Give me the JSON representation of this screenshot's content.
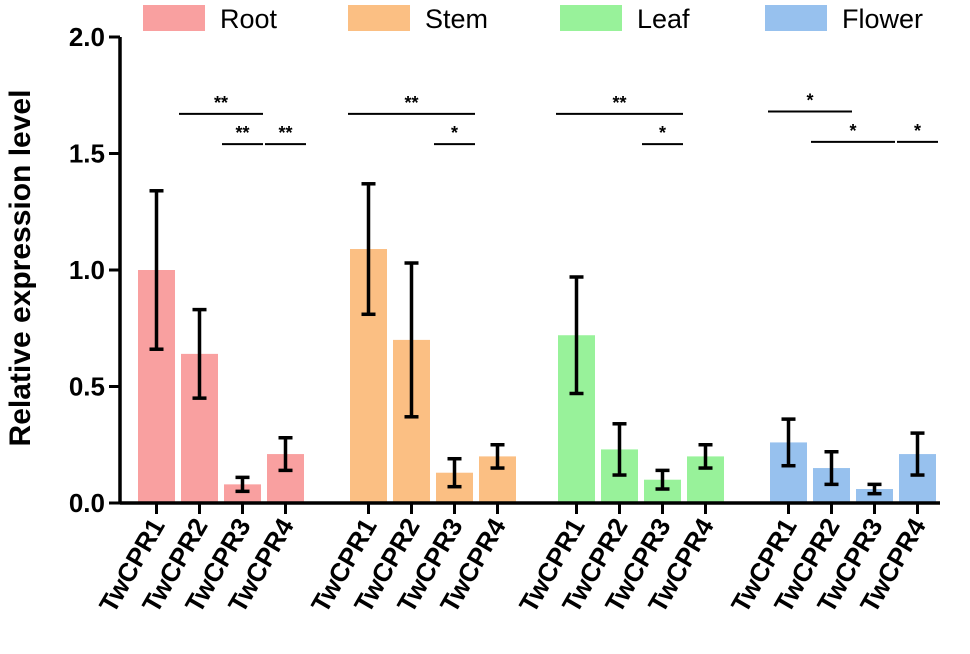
{
  "chart_data": {
    "type": "bar",
    "title": "",
    "xlabel": "",
    "ylabel": "Relative expression level",
    "ylim": [
      0,
      2.0
    ],
    "yticks": [
      "0.0",
      "0.5",
      "1.0",
      "1.5",
      "2.0"
    ],
    "legend_position": "top",
    "groups": [
      {
        "name": "Root",
        "color": "#f9a0a0"
      },
      {
        "name": "Stem",
        "color": "#fbbf83"
      },
      {
        "name": "Leaf",
        "color": "#98f29a"
      },
      {
        "name": "Flower",
        "color": "#97c1ee"
      }
    ],
    "categories": [
      "TwCPR1",
      "TwCPR2",
      "TwCPR3",
      "TwCPR4"
    ],
    "series": [
      {
        "name": "Root",
        "values": [
          1.0,
          0.64,
          0.08,
          0.21
        ],
        "errors": [
          0.34,
          0.19,
          0.03,
          0.07
        ]
      },
      {
        "name": "Stem",
        "values": [
          1.09,
          0.7,
          0.13,
          0.2
        ],
        "errors": [
          0.28,
          0.33,
          0.06,
          0.05
        ]
      },
      {
        "name": "Leaf",
        "values": [
          0.72,
          0.23,
          0.1,
          0.2
        ],
        "errors": [
          0.25,
          0.11,
          0.04,
          0.05
        ]
      },
      {
        "name": "Flower",
        "values": [
          0.26,
          0.15,
          0.06,
          0.21
        ],
        "errors": [
          0.1,
          0.07,
          0.02,
          0.09
        ]
      }
    ],
    "significance": [
      {
        "group": 0,
        "from": 1,
        "to": 2,
        "level": 1.67,
        "label": "**"
      },
      {
        "group": 0,
        "from": 2,
        "to": 2,
        "level": 1.54,
        "label": "**"
      },
      {
        "group": 0,
        "from": 3,
        "to": 3,
        "level": 1.54,
        "label": "**"
      },
      {
        "group": 1,
        "from": 0,
        "to": 2,
        "level": 1.67,
        "label": "**"
      },
      {
        "group": 1,
        "from": 2,
        "to": 2,
        "level": 1.54,
        "label": "*"
      },
      {
        "group": 2,
        "from": 0,
        "to": 2,
        "level": 1.67,
        "label": "**"
      },
      {
        "group": 2,
        "from": 2,
        "to": 2,
        "level": 1.54,
        "label": "*"
      },
      {
        "group": 3,
        "from": 0,
        "to": 1,
        "level": 1.68,
        "label": "*"
      },
      {
        "group": 3,
        "from": 1,
        "to": 2,
        "level": 1.55,
        "label": "*"
      },
      {
        "group": 3,
        "from": 3,
        "to": 3,
        "level": 1.55,
        "label": "*"
      }
    ]
  }
}
